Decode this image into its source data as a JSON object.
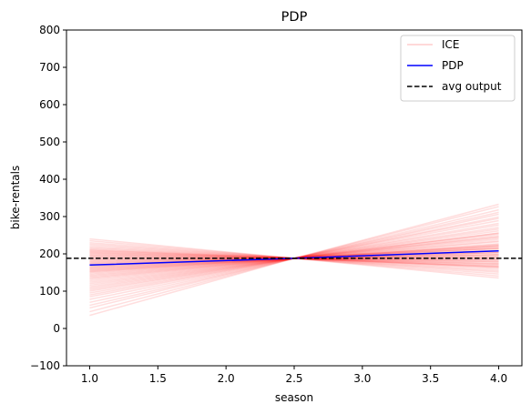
{
  "chart_data": {
    "type": "line",
    "title": "PDP",
    "xlabel": "season",
    "ylabel": "bike-rentals",
    "xlim": [
      0.83,
      4.17
    ],
    "ylim": [
      -100,
      800
    ],
    "x_ticks": [
      "1.0",
      "1.5",
      "2.0",
      "2.5",
      "3.0",
      "3.5",
      "4.0"
    ],
    "y_ticks": [
      "−100",
      "0",
      "100",
      "200",
      "300",
      "400",
      "500",
      "600",
      "700",
      "800"
    ],
    "grid": false,
    "legend_position": "top-right",
    "legend": [
      "ICE",
      "PDP",
      "avg output"
    ],
    "x": [
      1.0,
      2.5,
      4.0
    ],
    "ice_pivot": 188,
    "ice_color": "#ff0000",
    "series": [
      {
        "name": "ICE",
        "color": "#ff0000",
        "ice_start_values": [
          35,
          45,
          55,
          62,
          70,
          78,
          85,
          90,
          95,
          100,
          104,
          108,
          112,
          116,
          120,
          124,
          128,
          132,
          135,
          138,
          141,
          144,
          147,
          150,
          152,
          154,
          156,
          158,
          160,
          162,
          164,
          166,
          168,
          170,
          172,
          174,
          176,
          178,
          180,
          182,
          184,
          186,
          188,
          190,
          192,
          194,
          196,
          198,
          200,
          202,
          204,
          206,
          208,
          210,
          212,
          215,
          218,
          222,
          226,
          230,
          235,
          240
        ]
      },
      {
        "name": "PDP",
        "color": "#0000ff",
        "values": [
          170,
          188,
          208
        ]
      },
      {
        "name": "avg output",
        "color": "#000000",
        "value": 188
      }
    ]
  }
}
